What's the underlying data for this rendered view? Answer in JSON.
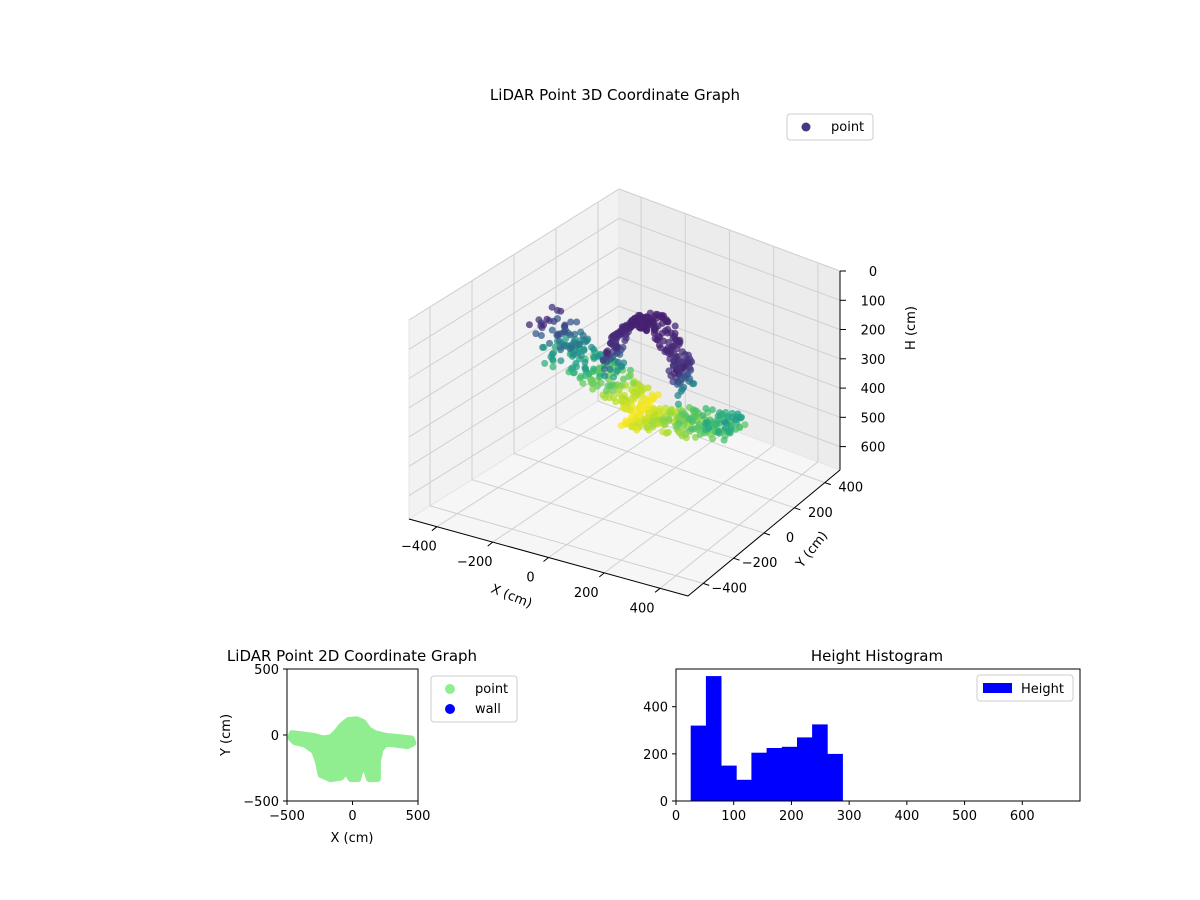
{
  "chart_data": [
    {
      "type": "scatter",
      "projection": "3d",
      "title": "LiDAR Point 3D Coordinate Graph",
      "xlabel": "X (cm)",
      "ylabel": "Y (cm)",
      "zlabel": "H (cm)",
      "xlim": [
        -500,
        500
      ],
      "ylim": [
        -500,
        500
      ],
      "zlim": [
        0,
        680
      ],
      "z_inverted": true,
      "x_ticks": [
        -400,
        -200,
        0,
        200,
        400
      ],
      "y_ticks": [
        -400,
        -200,
        0,
        200,
        400
      ],
      "z_ticks": [
        0,
        100,
        200,
        300,
        400,
        500,
        600
      ],
      "colormap": "viridis",
      "legend": {
        "position": "top-right",
        "entries": [
          "point"
        ]
      },
      "legend_color": "#443983",
      "series": [
        {
          "name": "point",
          "dome": {
            "x_range": [
              -100,
              180
            ],
            "y_range": [
              -60,
              60
            ],
            "z_range": [
              80,
              320
            ]
          },
          "fan_left": {
            "x_range": [
              -420,
              0
            ],
            "y_range": [
              -30,
              120
            ],
            "z_range": [
              180,
              400
            ]
          },
          "fan_right": {
            "x_range": [
              0,
              420
            ],
            "y_range": [
              -120,
              30
            ],
            "z_range": [
              280,
              400
            ]
          }
        }
      ]
    },
    {
      "type": "scatter",
      "title": "LiDAR Point 2D Coordinate Graph",
      "xlabel": "X (cm)",
      "ylabel": "Y (cm)",
      "xlim": [
        -500,
        500
      ],
      "ylim": [
        -500,
        500
      ],
      "x_ticks": [
        -500,
        0,
        500
      ],
      "y_ticks": [
        500,
        0,
        -500
      ],
      "legend": {
        "position": "outside-right",
        "entries": [
          "point",
          "wall"
        ]
      },
      "series": [
        {
          "name": "point",
          "color": "#90ee90",
          "outline": [
            [
              -460,
              10
            ],
            [
              -380,
              0
            ],
            [
              -300,
              -10
            ],
            [
              -220,
              -30
            ],
            [
              -160,
              -20
            ],
            [
              -120,
              20
            ],
            [
              -80,
              70
            ],
            [
              -30,
              110
            ],
            [
              30,
              115
            ],
            [
              80,
              95
            ],
            [
              120,
              40
            ],
            [
              170,
              10
            ],
            [
              250,
              -10
            ],
            [
              350,
              -20
            ],
            [
              450,
              -30
            ],
            [
              460,
              -60
            ],
            [
              420,
              -80
            ],
            [
              330,
              -70
            ],
            [
              250,
              -60
            ],
            [
              210,
              -110
            ],
            [
              190,
              -200
            ],
            [
              190,
              -330
            ],
            [
              130,
              -330
            ],
            [
              100,
              -240
            ],
            [
              60,
              -260
            ],
            [
              40,
              -330
            ],
            [
              -10,
              -330
            ],
            [
              -50,
              -270
            ],
            [
              -90,
              -320
            ],
            [
              -170,
              -330
            ],
            [
              -240,
              -300
            ],
            [
              -260,
              -200
            ],
            [
              -290,
              -120
            ],
            [
              -360,
              -70
            ],
            [
              -440,
              -50
            ],
            [
              -470,
              -20
            ]
          ]
        },
        {
          "name": "wall",
          "color": "#0000ff",
          "points": []
        }
      ]
    },
    {
      "type": "histogram",
      "title": "Height Histogram",
      "xlabel": "",
      "ylabel": "",
      "xlim": [
        0,
        700
      ],
      "ylim": [
        0,
        560
      ],
      "x_ticks": [
        0,
        100,
        200,
        300,
        400,
        500,
        600
      ],
      "y_ticks": [
        0,
        200,
        400
      ],
      "color": "#0000ff",
      "legend": {
        "position": "top-right",
        "entries": [
          "Height"
        ]
      },
      "bin_edges": [
        25.5,
        51.8,
        78.1,
        104.4,
        130.7,
        157.0,
        183.3,
        209.6,
        235.9,
        262.2,
        288.5
      ],
      "counts": [
        320,
        530,
        150,
        90,
        205,
        225,
        230,
        270,
        325,
        200
      ],
      "series": [
        {
          "name": "Height"
        }
      ]
    }
  ]
}
